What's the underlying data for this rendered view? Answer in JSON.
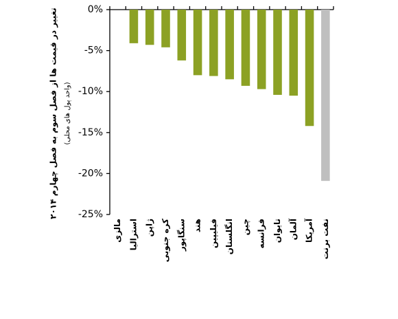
{
  "chart_data": {
    "type": "bar",
    "title": "تغییر در قیمت ها از فصل سوم به فصل چهارم ۲۰۱۴",
    "subtitle": "(واحد پول های محلی)",
    "categories": [
      "مالزی",
      "استرالیا",
      "ژاپن",
      "کره جنوبی",
      "سنگاپور",
      "هند",
      "فیلیپین",
      "انگلستان",
      "چین",
      "فرانسه",
      "تایوان",
      "آلمان",
      "آمریکا",
      "نفت برنت"
    ],
    "values": [
      0,
      -4.1,
      -4.3,
      -4.6,
      -6.2,
      -8.0,
      -8.1,
      -8.5,
      -9.3,
      -9.7,
      -10.4,
      -10.5,
      -14.2,
      -20.9
    ],
    "colors": [
      "#8ca124",
      "#8ca124",
      "#8ca124",
      "#8ca124",
      "#8ca124",
      "#8ca124",
      "#8ca124",
      "#8ca124",
      "#8ca124",
      "#8ca124",
      "#8ca124",
      "#8ca124",
      "#8ca124",
      "#bfbfbf"
    ],
    "ylim": [
      -25,
      0
    ],
    "yticks": [
      {
        "value": 0,
        "label": "0%"
      },
      {
        "value": -5,
        "label": "-5%"
      },
      {
        "value": -10,
        "label": "-10%"
      },
      {
        "value": -15,
        "label": "-15%"
      },
      {
        "value": -20,
        "label": "-20%"
      },
      {
        "value": -25,
        "label": "-25%"
      }
    ],
    "grid": false
  }
}
